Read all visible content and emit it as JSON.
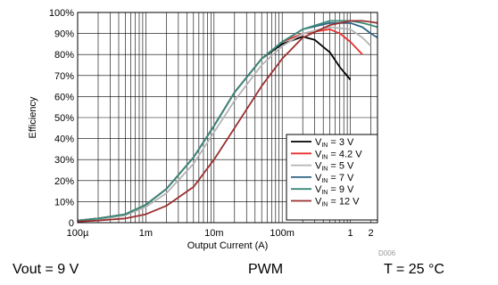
{
  "chart_data": {
    "type": "line",
    "xlabel": "Output Current (A)",
    "ylabel": "Efficiency",
    "x_scale": "log",
    "xlim": [
      0.0001,
      2.5
    ],
    "ylim": [
      0,
      100
    ],
    "x_ticks": [
      {
        "value": 0.0001,
        "label": "100µ"
      },
      {
        "value": 0.001,
        "label": "1m"
      },
      {
        "value": 0.01,
        "label": "10m"
      },
      {
        "value": 0.1,
        "label": "100m"
      },
      {
        "value": 1,
        "label": "1"
      },
      {
        "value": 2,
        "label": "2"
      }
    ],
    "y_ticks": [
      {
        "value": 0,
        "label": "0"
      },
      {
        "value": 10,
        "label": "10%"
      },
      {
        "value": 20,
        "label": "20%"
      },
      {
        "value": 30,
        "label": "30%"
      },
      {
        "value": 40,
        "label": "40%"
      },
      {
        "value": 50,
        "label": "50%"
      },
      {
        "value": 60,
        "label": "60%"
      },
      {
        "value": 70,
        "label": "70%"
      },
      {
        "value": 80,
        "label": "80%"
      },
      {
        "value": 90,
        "label": "90%"
      },
      {
        "value": 100,
        "label": "100%"
      }
    ],
    "grid": true,
    "legend_position": "bottom-right",
    "series": [
      {
        "name": "VIN = 3 V",
        "label_main": "V",
        "label_sub": "IN",
        "label_rest": " = 3 V",
        "color": "#000000",
        "x": [
          0.0001,
          0.0002,
          0.0005,
          0.001,
          0.002,
          0.005,
          0.01,
          0.02,
          0.05,
          0.1,
          0.2,
          0.3,
          0.5,
          0.7,
          1
        ],
        "y": [
          1,
          2,
          4,
          8.5,
          16,
          31,
          46,
          62,
          78,
          85,
          88.5,
          87,
          81,
          74,
          68
        ]
      },
      {
        "name": "VIN = 4.2 V",
        "label_main": "V",
        "label_sub": "IN",
        "label_rest": " = 4.2 V",
        "color": "#e8312f",
        "x": [
          0.0001,
          0.0002,
          0.0005,
          0.001,
          0.002,
          0.005,
          0.01,
          0.02,
          0.05,
          0.1,
          0.2,
          0.5,
          0.7,
          1,
          1.5
        ],
        "y": [
          1,
          2,
          4,
          8.5,
          16,
          31,
          46,
          62,
          78,
          86,
          90,
          92,
          90,
          86,
          80
        ]
      },
      {
        "name": "VIN = 5 V",
        "label_main": "V",
        "label_sub": "IN",
        "label_rest": " = 5 V",
        "color": "#b4b4b4",
        "x": [
          0.0001,
          0.0002,
          0.0005,
          0.001,
          0.002,
          0.005,
          0.01,
          0.02,
          0.05,
          0.1,
          0.2,
          0.5,
          1,
          1.5,
          2
        ],
        "y": [
          0.8,
          1.5,
          3.5,
          7.5,
          14,
          28,
          43,
          58,
          75,
          84,
          90,
          93,
          92,
          88,
          84
        ]
      },
      {
        "name": "VIN = 7 V",
        "label_main": "V",
        "label_sub": "IN",
        "label_rest": " = 7 V",
        "color": "#2e6384",
        "x": [
          0.0001,
          0.0002,
          0.0005,
          0.001,
          0.002,
          0.005,
          0.01,
          0.02,
          0.05,
          0.1,
          0.2,
          0.5,
          1,
          1.5,
          2,
          2.5
        ],
        "y": [
          1,
          2,
          4,
          8.5,
          16,
          31,
          46,
          62,
          78,
          86,
          92,
          95,
          95,
          93,
          90,
          88
        ]
      },
      {
        "name": "VIN = 9 V",
        "label_main": "V",
        "label_sub": "IN",
        "label_rest": " = 9 V",
        "color": "#3a8a78",
        "x": [
          0.0001,
          0.0002,
          0.0005,
          0.001,
          0.002,
          0.005,
          0.01,
          0.02,
          0.05,
          0.1,
          0.2,
          0.5,
          1,
          1.5,
          2,
          2.5
        ],
        "y": [
          1,
          2,
          4,
          8.5,
          16,
          31,
          46,
          62,
          78,
          86,
          92,
          96,
          96,
          95,
          94,
          93
        ]
      },
      {
        "name": "VIN = 12 V",
        "label_main": "V",
        "label_sub": "IN",
        "label_rest": " = 12 V",
        "color": "#9b2f2f",
        "x": [
          0.0001,
          0.0002,
          0.0005,
          0.001,
          0.002,
          0.005,
          0.01,
          0.02,
          0.05,
          0.1,
          0.2,
          0.5,
          1,
          1.5,
          2,
          2.5
        ],
        "y": [
          0.5,
          1,
          2,
          4,
          8,
          17,
          30,
          45,
          65,
          78,
          88,
          94,
          96,
          96,
          95.5,
          95
        ]
      }
    ]
  },
  "figure_code": "D006",
  "captions": {
    "left": "Vout = 9 V",
    "center": "PWM",
    "right": "T = 25 °C"
  }
}
